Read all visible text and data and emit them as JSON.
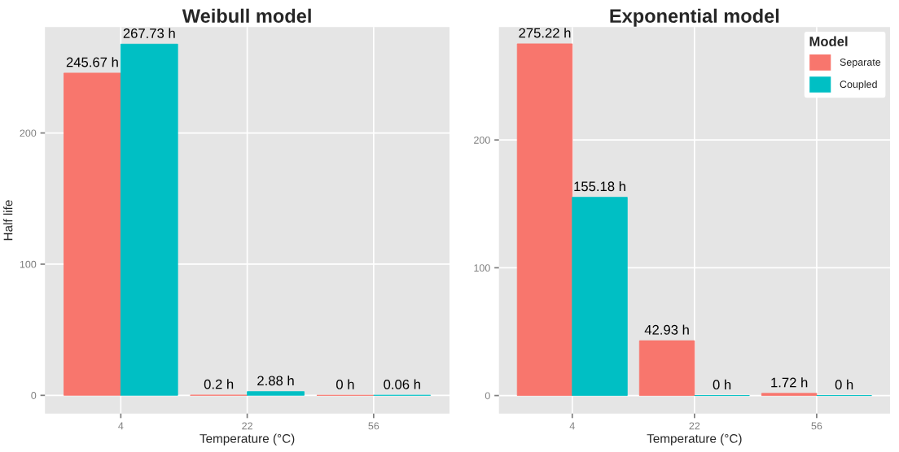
{
  "chart_data": [
    {
      "type": "bar",
      "title": "Weibull model",
      "xlabel": "Temperature (°C)",
      "ylabel": "Half life",
      "categories": [
        "4",
        "22",
        "56"
      ],
      "series": [
        {
          "color": "#f8766d",
          "values": [
            245.67,
            0.2,
            0
          ],
          "value_labels": [
            "245.67 h",
            "0.2 h",
            "0 h"
          ]
        },
        {
          "color": "#00bfc4",
          "values": [
            267.73,
            2.88,
            0.06
          ],
          "value_labels": [
            "267.73 h",
            "2.88 h",
            "0.06 h"
          ]
        }
      ],
      "ylim": [
        -13.9,
        280.7
      ],
      "yticks": [
        0,
        100,
        200
      ],
      "grid": true
    },
    {
      "type": "bar",
      "title": "Exponential model",
      "xlabel": "Temperature (°C)",
      "categories": [
        "4",
        "22",
        "56"
      ],
      "series": [
        {
          "name": "Separate",
          "color": "#f8766d",
          "values": [
            275.22,
            42.93,
            1.72
          ],
          "value_labels": [
            "275.22 h",
            "42.93 h",
            "1.72 h"
          ]
        },
        {
          "name": "Coupled",
          "color": "#00bfc4",
          "values": [
            155.18,
            0,
            0
          ],
          "value_labels": [
            "155.18 h",
            "0 h",
            "0 h"
          ]
        }
      ],
      "ylim": [
        -14.1,
        288.3
      ],
      "yticks": [
        0,
        100,
        200
      ],
      "grid": true,
      "legend": "top right",
      "legend_title": "Model"
    }
  ]
}
